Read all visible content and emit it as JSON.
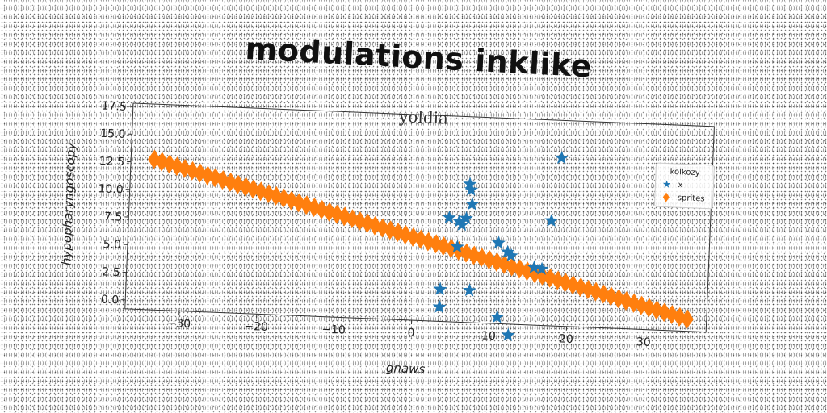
{
  "title": "modulations inklike",
  "chart_data": {
    "type": "scatter",
    "subtitle": "yoldia",
    "xlabel": "gnaws",
    "ylabel": "hypopharyngoscopy",
    "xlim": [
      -37,
      38
    ],
    "ylim": [
      -0.8,
      17.8
    ],
    "xticks": [
      -30,
      -20,
      -10,
      0,
      10,
      20,
      30
    ],
    "yticks": [
      0.0,
      2.5,
      5.0,
      7.5,
      10.0,
      12.5,
      15.0,
      17.5
    ],
    "xtick_labels": [
      "−30",
      "−20",
      "−10",
      "0",
      "10",
      "20",
      "30"
    ],
    "ytick_labels": [
      "0.0",
      "2.5",
      "5.0",
      "7.5",
      "10.0",
      "12.5",
      "15.0",
      "17.5"
    ],
    "grid": false,
    "legend": {
      "title": "kolkozy",
      "placement": "top-right",
      "entries": [
        "x",
        "sprites"
      ]
    },
    "series": [
      {
        "name": "x",
        "marker": "star",
        "color": "#1f77b4",
        "points": [
          [
            6.0,
            8.0
          ],
          [
            5.6,
            8.3
          ],
          [
            6.5,
            8.6
          ],
          [
            4.3,
            8.6
          ],
          [
            6.8,
            11.7
          ],
          [
            7.0,
            11.2
          ],
          [
            7.2,
            9.9
          ],
          [
            5.5,
            6.0
          ],
          [
            3.5,
            2.1
          ],
          [
            3.5,
            0.5
          ],
          [
            7.3,
            2.1
          ],
          [
            10.8,
            6.5
          ],
          [
            12.0,
            5.7
          ],
          [
            12.5,
            5.4
          ],
          [
            11.0,
            -0.2
          ],
          [
            12.5,
            -1.8
          ],
          [
            15.5,
            4.4
          ],
          [
            16.5,
            4.3
          ],
          [
            17.5,
            8.7
          ],
          [
            18.5,
            14.4
          ]
        ]
      },
      {
        "name": "sprites",
        "marker": "diamond",
        "color": "#ff7f0e",
        "line": {
          "x_start": -34,
          "y_start": 12.8,
          "x_end": 35.5,
          "y_end": 0.3,
          "count": 71
        }
      }
    ]
  }
}
